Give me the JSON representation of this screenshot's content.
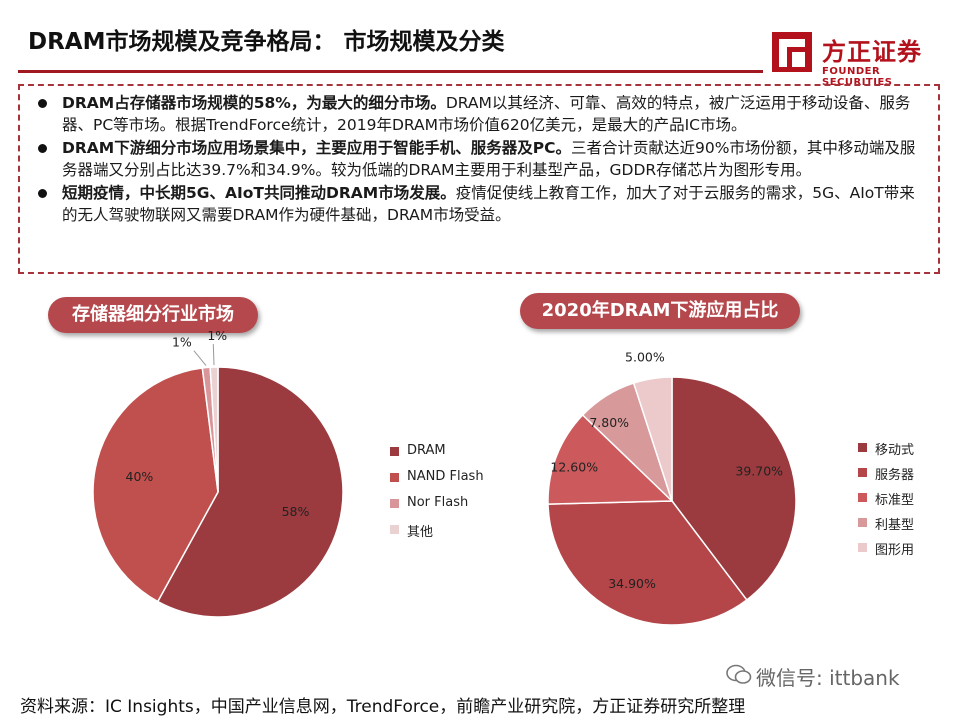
{
  "header": {
    "title": "DRAM市场规模及竞争格局： 市场规模及分类",
    "logo_name": "方正证券",
    "logo_en": "FOUNDER SECURITIES"
  },
  "bullets": [
    {
      "bold": "DRAM占存储器市场规模的58%，为最大的细分市场。",
      "text": "DRAM以其经济、可靠、高效的特点，被广泛运用于移动设备、服务器、PC等市场。根据TrendForce统计，2019年DRAM市场价值620亿美元，是最大的产品IC市场。"
    },
    {
      "bold": "DRAM下游细分市场应用场景集中，主要应用于智能手机、服务器及PC。",
      "text": "三者合计贡献达近90%市场份额，其中移动端及服务器端又分别占比达39.7%和34.9%。较为低端的DRAM主要用于利基型产品，GDDR存储芯片为图形专用。"
    },
    {
      "bold": "短期疫情，中长期5G、AIoT共同推动DRAM市场发展。",
      "text": "疫情促使线上教育工作，加大了对于云服务的需求，5G、AIoT带来的无人驾驶物联网又需要DRAM作为硬件基础，DRAM市场受益。"
    }
  ],
  "chart_data": [
    {
      "type": "pie",
      "title": "存储器细分行业市场",
      "categories": [
        "DRAM",
        "NAND Flash",
        "Nor Flash",
        "其他"
      ],
      "values": [
        58,
        40,
        1,
        1
      ],
      "data_labels": [
        "58%",
        "40%",
        "1%",
        "1%"
      ],
      "colors": [
        "#9b3b3f",
        "#c0504d",
        "#d9969a",
        "#ead2d3"
      ],
      "legend_position": "right"
    },
    {
      "type": "pie",
      "title": "2020年DRAM下游应用占比",
      "categories": [
        "移动式",
        "服务器",
        "标准型",
        "利基型",
        "图形用"
      ],
      "values": [
        39.7,
        34.9,
        12.6,
        7.8,
        5.0
      ],
      "data_labels": [
        "39.70%",
        "34.90%",
        "12.60%",
        "7.80%",
        "5.00%"
      ],
      "colors": [
        "#9b3b3f",
        "#b44548",
        "#cc5a5c",
        "#d8999b",
        "#ecc9ca"
      ],
      "legend_position": "right"
    }
  ],
  "footer": {
    "source": "资料来源：IC Insights，中国产业信息网，TrendForce，前瞻产业研究院，方正证券研究所整理",
    "wechat": "微信号: ittbank"
  }
}
